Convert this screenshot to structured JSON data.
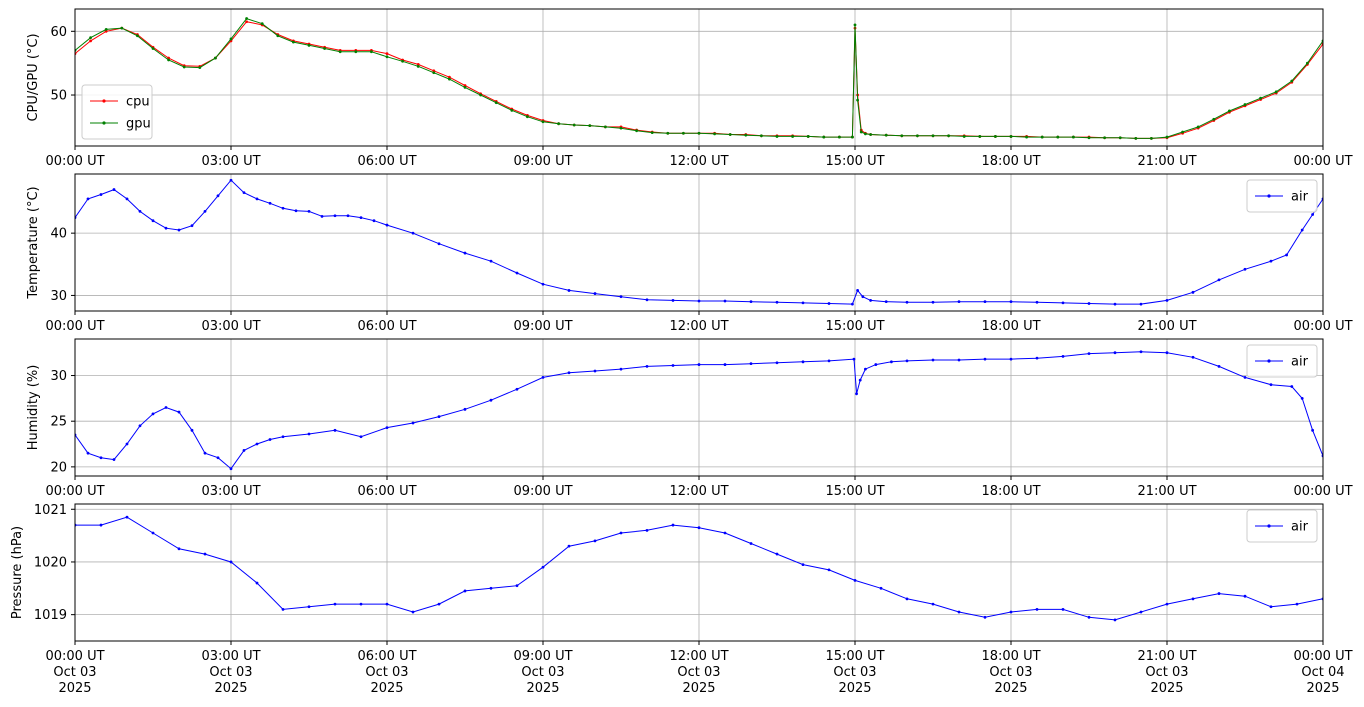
{
  "chart_data": [
    {
      "type": "line",
      "ylabel": "CPU/GPU (°C)",
      "xlim": [
        0,
        24
      ],
      "ylim": [
        42,
        63.5
      ],
      "yticks": [
        50,
        60
      ],
      "xtick_labels": [
        "00:00 UT",
        "03:00 UT",
        "06:00 UT",
        "09:00 UT",
        "12:00 UT",
        "15:00 UT",
        "18:00 UT",
        "21:00 UT",
        "00:00 UT"
      ],
      "grid": true,
      "legend": "lower-left",
      "series": [
        {
          "name": "cpu",
          "color": "#ff0000",
          "x": [
            0,
            0.3,
            0.6,
            0.9,
            1.2,
            1.5,
            1.8,
            2.1,
            2.4,
            2.7,
            3.0,
            3.3,
            3.6,
            3.9,
            4.2,
            4.5,
            4.8,
            5.1,
            5.4,
            5.7,
            6.0,
            6.3,
            6.6,
            6.9,
            7.2,
            7.5,
            7.8,
            8.1,
            8.4,
            8.7,
            9.0,
            9.3,
            9.6,
            9.9,
            10.2,
            10.5,
            10.8,
            11.1,
            11.4,
            11.7,
            12.0,
            12.3,
            12.6,
            12.9,
            13.2,
            13.5,
            13.8,
            14.1,
            14.4,
            14.7,
            14.95,
            15.0,
            15.05,
            15.12,
            15.2,
            15.3,
            15.6,
            15.9,
            16.2,
            16.5,
            16.8,
            17.1,
            17.4,
            17.7,
            18.0,
            18.3,
            18.6,
            18.9,
            19.2,
            19.5,
            19.8,
            20.1,
            20.4,
            20.7,
            21.0,
            21.3,
            21.6,
            21.9,
            22.2,
            22.5,
            22.8,
            23.1,
            23.4,
            23.7,
            24.0
          ],
          "y": [
            56.5,
            58.5,
            60,
            60.5,
            59.5,
            57.5,
            55.8,
            54.6,
            54.5,
            55.8,
            58.5,
            61.5,
            61,
            59.5,
            58.5,
            58,
            57.5,
            57,
            57,
            57,
            56.5,
            55.5,
            54.8,
            53.8,
            52.8,
            51.5,
            50.2,
            49,
            47.8,
            46.8,
            46,
            45.5,
            45.3,
            45.2,
            45,
            45,
            44.5,
            44.2,
            44,
            44,
            44,
            44,
            43.8,
            43.8,
            43.6,
            43.6,
            43.6,
            43.5,
            43.4,
            43.4,
            43.4,
            60.5,
            50,
            44.5,
            44,
            43.8,
            43.7,
            43.6,
            43.6,
            43.6,
            43.6,
            43.6,
            43.5,
            43.5,
            43.5,
            43.5,
            43.4,
            43.4,
            43.4,
            43.4,
            43.3,
            43.3,
            43.2,
            43.2,
            43.3,
            44,
            44.8,
            46,
            47.3,
            48.3,
            49.3,
            50.3,
            52,
            54.8,
            58
          ]
        },
        {
          "name": "gpu",
          "color": "#008000",
          "x": [
            0,
            0.3,
            0.6,
            0.9,
            1.2,
            1.5,
            1.8,
            2.1,
            2.4,
            2.7,
            3.0,
            3.3,
            3.6,
            3.9,
            4.2,
            4.5,
            4.8,
            5.1,
            5.4,
            5.7,
            6.0,
            6.3,
            6.6,
            6.9,
            7.2,
            7.5,
            7.8,
            8.1,
            8.4,
            8.7,
            9.0,
            9.3,
            9.6,
            9.9,
            10.2,
            10.5,
            10.8,
            11.1,
            11.4,
            11.7,
            12.0,
            12.3,
            12.6,
            12.9,
            13.2,
            13.5,
            13.8,
            14.1,
            14.4,
            14.7,
            14.95,
            15.0,
            15.05,
            15.12,
            15.2,
            15.3,
            15.6,
            15.9,
            16.2,
            16.5,
            16.8,
            17.1,
            17.4,
            17.7,
            18.0,
            18.3,
            18.6,
            18.9,
            19.2,
            19.5,
            19.8,
            20.1,
            20.4,
            20.7,
            21.0,
            21.3,
            21.6,
            21.9,
            22.2,
            22.5,
            22.8,
            23.1,
            23.4,
            23.7,
            24.0
          ],
          "y": [
            57,
            59,
            60.3,
            60.5,
            59.3,
            57.3,
            55.5,
            54.4,
            54.3,
            55.8,
            58.8,
            62,
            61.2,
            59.3,
            58.3,
            57.8,
            57.3,
            56.8,
            56.8,
            56.8,
            56,
            55.3,
            54.5,
            53.5,
            52.5,
            51.2,
            50,
            48.8,
            47.6,
            46.6,
            45.8,
            45.5,
            45.3,
            45.2,
            45,
            44.8,
            44.4,
            44.1,
            44,
            44,
            44,
            43.9,
            43.8,
            43.7,
            43.6,
            43.5,
            43.5,
            43.5,
            43.4,
            43.4,
            43.4,
            61,
            49.2,
            44.2,
            43.9,
            43.8,
            43.7,
            43.6,
            43.6,
            43.6,
            43.6,
            43.5,
            43.5,
            43.5,
            43.5,
            43.4,
            43.4,
            43.4,
            43.4,
            43.3,
            43.3,
            43.3,
            43.2,
            43.2,
            43.4,
            44.2,
            45,
            46.2,
            47.5,
            48.5,
            49.5,
            50.5,
            52.2,
            55,
            58.5
          ]
        }
      ]
    },
    {
      "type": "line",
      "ylabel": "Temperature (°C)",
      "xlim": [
        0,
        24
      ],
      "ylim": [
        27.5,
        49.5
      ],
      "yticks": [
        30,
        40
      ],
      "xtick_labels": [
        "00:00 UT",
        "03:00 UT",
        "06:00 UT",
        "09:00 UT",
        "12:00 UT",
        "15:00 UT",
        "18:00 UT",
        "21:00 UT",
        "00:00 UT"
      ],
      "grid": true,
      "legend": "top-right",
      "series": [
        {
          "name": "air",
          "color": "#0000ff",
          "x": [
            0,
            0.25,
            0.5,
            0.75,
            1.0,
            1.25,
            1.5,
            1.75,
            2.0,
            2.25,
            2.5,
            2.75,
            3.0,
            3.25,
            3.5,
            3.75,
            4.0,
            4.25,
            4.5,
            4.75,
            5.0,
            5.25,
            5.5,
            5.75,
            6.0,
            6.5,
            7.0,
            7.5,
            8.0,
            8.5,
            9.0,
            9.5,
            10.0,
            10.5,
            11.0,
            11.5,
            12.0,
            12.5,
            13.0,
            13.5,
            14.0,
            14.5,
            14.95,
            15.05,
            15.15,
            15.3,
            15.6,
            16,
            16.5,
            17,
            17.5,
            18,
            18.5,
            19,
            19.5,
            20,
            20.5,
            21.0,
            21.5,
            22,
            22.5,
            23.0,
            23.3,
            23.6,
            23.8,
            24.0
          ],
          "y": [
            42.5,
            45.5,
            46.2,
            47,
            45.5,
            43.5,
            42,
            40.8,
            40.5,
            41.2,
            43.5,
            46,
            48.5,
            46.5,
            45.5,
            44.8,
            44,
            43.6,
            43.5,
            42.7,
            42.8,
            42.8,
            42.5,
            42,
            41.3,
            40,
            38.3,
            36.8,
            35.5,
            33.6,
            31.8,
            30.8,
            30.3,
            29.8,
            29.3,
            29.2,
            29.1,
            29.1,
            29,
            28.9,
            28.8,
            28.7,
            28.6,
            30.8,
            29.8,
            29.2,
            29,
            28.9,
            28.9,
            29,
            29,
            29,
            28.9,
            28.8,
            28.7,
            28.6,
            28.6,
            29.2,
            30.5,
            32.5,
            34.2,
            35.5,
            36.5,
            40.5,
            43,
            45.5
          ]
        }
      ]
    },
    {
      "type": "line",
      "ylabel": "Humidity (%)",
      "xlim": [
        0,
        24
      ],
      "ylim": [
        19,
        34
      ],
      "yticks": [
        20,
        25,
        30
      ],
      "xtick_labels": [
        "00:00 UT",
        "03:00 UT",
        "06:00 UT",
        "09:00 UT",
        "12:00 UT",
        "15:00 UT",
        "18:00 UT",
        "21:00 UT",
        "00:00 UT"
      ],
      "grid": true,
      "legend": "top-right",
      "series": [
        {
          "name": "air",
          "color": "#0000ff",
          "x": [
            0,
            0.25,
            0.5,
            0.75,
            1.0,
            1.25,
            1.5,
            1.75,
            2.0,
            2.25,
            2.5,
            2.75,
            3.0,
            3.25,
            3.5,
            3.75,
            4.0,
            4.5,
            5.0,
            5.5,
            6.0,
            6.5,
            7.0,
            7.5,
            8.0,
            8.5,
            9.0,
            9.5,
            10.0,
            10.5,
            11.0,
            11.5,
            12.0,
            12.5,
            13.0,
            13.5,
            14.0,
            14.5,
            14.98,
            15.03,
            15.1,
            15.2,
            15.4,
            15.7,
            16,
            16.5,
            17,
            17.5,
            18,
            18.5,
            19,
            19.5,
            20,
            20.5,
            21.0,
            21.5,
            22,
            22.5,
            23.0,
            23.4,
            23.6,
            23.8,
            24.0
          ],
          "y": [
            23.5,
            21.5,
            21,
            20.8,
            22.5,
            24.5,
            25.8,
            26.5,
            26,
            24,
            21.5,
            21,
            19.8,
            21.8,
            22.5,
            23,
            23.3,
            23.6,
            24,
            23.3,
            24.3,
            24.8,
            25.5,
            26.3,
            27.3,
            28.5,
            29.8,
            30.3,
            30.5,
            30.7,
            31,
            31.1,
            31.2,
            31.2,
            31.3,
            31.4,
            31.5,
            31.6,
            31.8,
            28,
            29.5,
            30.7,
            31.2,
            31.5,
            31.6,
            31.7,
            31.7,
            31.8,
            31.8,
            31.9,
            32.1,
            32.4,
            32.5,
            32.6,
            32.5,
            32,
            31,
            29.8,
            29,
            28.8,
            27.5,
            24,
            21.2
          ]
        }
      ]
    },
    {
      "type": "line",
      "ylabel": "Pressure (hPa)",
      "xlim": [
        0,
        24
      ],
      "ylim": [
        1018.5,
        1021.1
      ],
      "yticks": [
        1019,
        1020,
        1021
      ],
      "xtick_labels": [
        "00:00 UT\nOct 03\n2025",
        "03:00 UT\nOct 03\n2025",
        "06:00 UT\nOct 03\n2025",
        "09:00 UT\nOct 03\n2025",
        "12:00 UT\nOct 03\n2025",
        "15:00 UT\nOct 03\n2025",
        "18:00 UT\nOct 03\n2025",
        "21:00 UT\nOct 03\n2025",
        "00:00 UT\nOct 04\n2025"
      ],
      "grid": true,
      "legend": "top-right",
      "series": [
        {
          "name": "air",
          "color": "#0000ff",
          "x": [
            0,
            0.5,
            1.0,
            1.5,
            2.0,
            2.5,
            3.0,
            3.5,
            4.0,
            4.5,
            5.0,
            5.5,
            6.0,
            6.5,
            7.0,
            7.5,
            8.0,
            8.5,
            9.0,
            9.5,
            10.0,
            10.5,
            11.0,
            11.5,
            12.0,
            12.5,
            13.0,
            13.5,
            14.0,
            14.5,
            15.0,
            15.5,
            16.0,
            16.5,
            17.0,
            17.5,
            18.0,
            18.5,
            19.0,
            19.5,
            20.0,
            20.5,
            21.0,
            21.5,
            22.0,
            22.5,
            23.0,
            23.5,
            24.0
          ],
          "y": [
            1020.7,
            1020.7,
            1020.85,
            1020.55,
            1020.25,
            1020.15,
            1020.0,
            1019.6,
            1019.1,
            1019.15,
            1019.2,
            1019.2,
            1019.2,
            1019.05,
            1019.2,
            1019.45,
            1019.5,
            1019.55,
            1019.9,
            1020.3,
            1020.4,
            1020.55,
            1020.6,
            1020.7,
            1020.65,
            1020.55,
            1020.35,
            1020.15,
            1019.95,
            1019.85,
            1019.65,
            1019.5,
            1019.3,
            1019.2,
            1019.05,
            1018.95,
            1019.05,
            1019.1,
            1019.1,
            1018.95,
            1018.9,
            1019.05,
            1019.2,
            1019.3,
            1019.4,
            1019.35,
            1019.15,
            1019.2,
            1019.3
          ]
        }
      ]
    }
  ]
}
